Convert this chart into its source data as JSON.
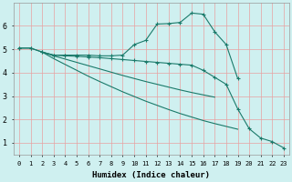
{
  "xlabel": "Humidex (Indice chaleur)",
  "background_color": "#cff0f0",
  "grid_color": "#e8a0a0",
  "line_color": "#1a7a6a",
  "xlim": [
    -0.5,
    23.5
  ],
  "ylim": [
    0.5,
    7.0
  ],
  "xticks": [
    0,
    1,
    2,
    3,
    4,
    5,
    6,
    7,
    8,
    9,
    10,
    11,
    12,
    13,
    14,
    15,
    16,
    17,
    18,
    19,
    20,
    21,
    22,
    23
  ],
  "yticks": [
    1,
    2,
    3,
    4,
    5,
    6
  ],
  "lines": [
    {
      "x": [
        0,
        1,
        2,
        3,
        4,
        5,
        6,
        7,
        8,
        9,
        10,
        11,
        12,
        13,
        14,
        15,
        16,
        17,
        18,
        19
      ],
      "y": [
        5.05,
        5.05,
        4.88,
        4.75,
        4.75,
        4.75,
        4.75,
        4.72,
        4.72,
        4.75,
        5.2,
        5.38,
        6.08,
        6.1,
        6.15,
        6.55,
        6.5,
        5.75,
        5.2,
        3.75
      ],
      "marker": true,
      "linestyle": "-"
    },
    {
      "x": [
        0,
        1,
        2,
        3,
        4,
        5,
        6,
        7,
        8,
        9,
        10,
        11,
        12,
        13,
        14,
        15,
        16,
        17,
        18,
        19,
        20,
        21,
        22,
        23
      ],
      "y": [
        5.05,
        5.05,
        4.88,
        4.75,
        4.72,
        4.7,
        4.67,
        4.64,
        4.6,
        4.56,
        4.52,
        4.48,
        4.44,
        4.4,
        4.36,
        4.32,
        4.1,
        3.8,
        3.5,
        2.45,
        1.6,
        1.2,
        1.05,
        0.78
      ],
      "marker": true,
      "linestyle": "-"
    },
    {
      "x": [
        2,
        3,
        4,
        5,
        6,
        7,
        8,
        9,
        10,
        11,
        12,
        13,
        14,
        15,
        16,
        17,
        18,
        19
      ],
      "y": [
        4.88,
        4.6,
        4.35,
        4.1,
        3.85,
        3.62,
        3.4,
        3.18,
        2.98,
        2.78,
        2.6,
        2.42,
        2.25,
        2.1,
        1.95,
        1.82,
        1.7,
        1.58
      ],
      "marker": false,
      "linestyle": "-"
    },
    {
      "x": [
        2,
        3,
        4,
        5,
        6,
        7,
        8,
        9,
        10,
        11,
        12,
        13,
        14,
        15,
        16,
        17
      ],
      "y": [
        4.88,
        4.72,
        4.58,
        4.44,
        4.3,
        4.16,
        4.02,
        3.88,
        3.75,
        3.62,
        3.5,
        3.38,
        3.26,
        3.15,
        3.05,
        2.95
      ],
      "marker": false,
      "linestyle": "-"
    }
  ]
}
